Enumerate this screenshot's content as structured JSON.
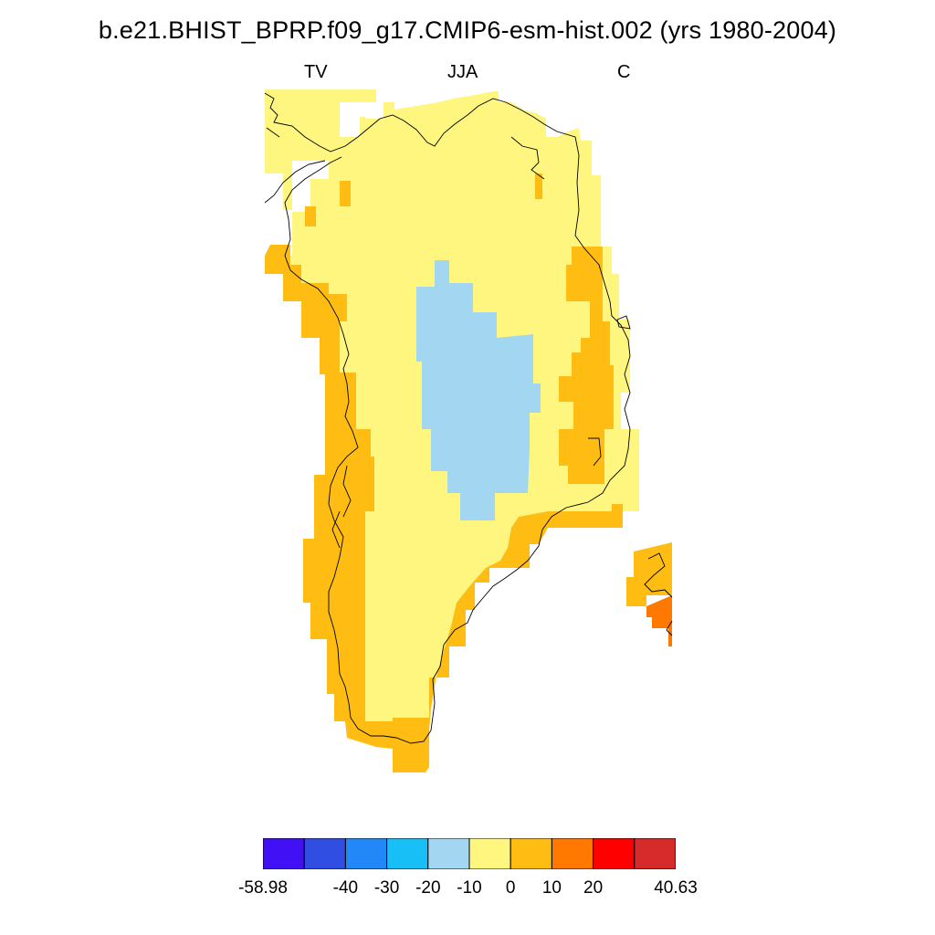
{
  "title": "b.e21.BHIST_BPRP.f09_g17.CMIP6-esm-hist.002 (yrs 1980-2004)",
  "subtitle_left": "TV",
  "subtitle_center": "JJA",
  "subtitle_right": "C",
  "map": {
    "region": "Greenland",
    "coastline_color": "#000000",
    "fill_categories": [
      {
        "range": "0 to 10",
        "color": "#fff67f"
      },
      {
        "range": "10 to 20",
        "color": "#ffbd13"
      },
      {
        "range": "20 to 30",
        "color": "#ff7800"
      },
      {
        "range": "-20 to -10",
        "color": "#a2d6f1"
      }
    ]
  },
  "colorbar": {
    "colors": [
      "#4210f5",
      "#314ee3",
      "#2388f7",
      "#18bef6",
      "#a2d6f1",
      "#fff67f",
      "#ffbd13",
      "#ff7800",
      "#ff0000",
      "#d72a2a"
    ],
    "labels": [
      "-58.98",
      "-40",
      "-30",
      "-20",
      "-10",
      "0",
      "10",
      "20",
      "40.63"
    ]
  }
}
